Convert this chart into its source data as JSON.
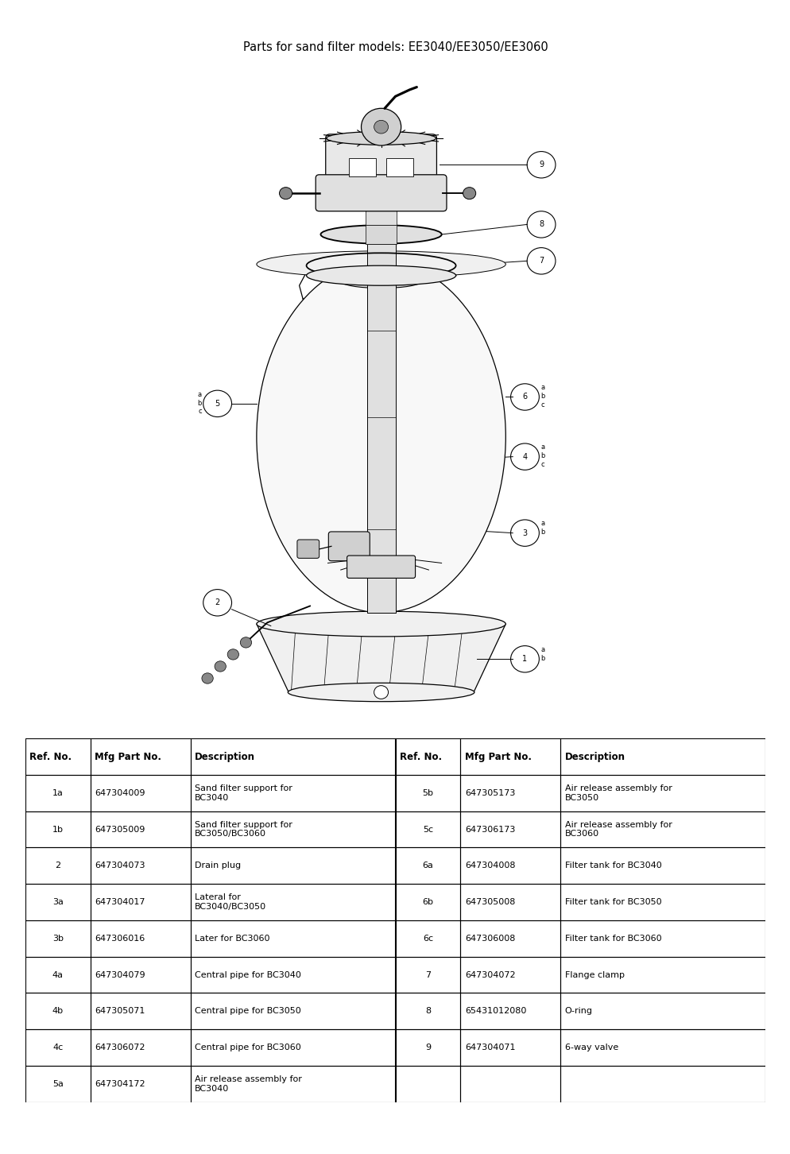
{
  "title": "Parts for sand filter models: EE3040/EE3050/EE3060",
  "title_fontsize": 10.5,
  "bg_color": "#ffffff",
  "table_headers_left": [
    "Ref. No.",
    "Mfg Part No.",
    "Description"
  ],
  "table_headers_right": [
    "Ref. No.",
    "Mfg Part No.",
    "Description"
  ],
  "table_rows_left": [
    [
      "1a",
      "647304009",
      "Sand filter support for\nBC3040"
    ],
    [
      "1b",
      "647305009",
      "Sand filter support for\nBC3050/BC3060"
    ],
    [
      "2",
      "647304073",
      "Drain plug"
    ],
    [
      "3a",
      "647304017",
      "Lateral for\nBC3040/BC3050"
    ],
    [
      "3b",
      "647306016",
      "Later for BC3060"
    ],
    [
      "4a",
      "647304079",
      "Central pipe for BC3040"
    ],
    [
      "4b",
      "647305071",
      "Central pipe for BC3050"
    ],
    [
      "4c",
      "647306072",
      "Central pipe for BC3060"
    ],
    [
      "5a",
      "647304172",
      "Air release assembly for\nBC3040"
    ]
  ],
  "table_rows_right": [
    [
      "5b",
      "647305173",
      "Air release assembly for\nBC3050"
    ],
    [
      "5c",
      "647306173",
      "Air release assembly for\nBC3060"
    ],
    [
      "6a",
      "647304008",
      "Filter tank for BC3040"
    ],
    [
      "6b",
      "647305008",
      "Filter tank for BC3050"
    ],
    [
      "6c",
      "647306008",
      "Filter tank for BC3060"
    ],
    [
      "7",
      "647304072",
      "Flange clamp"
    ],
    [
      "8",
      "65431012080",
      "O-ring"
    ],
    [
      "9",
      "647304071",
      "6-way valve"
    ],
    [
      "",
      "",
      ""
    ]
  ],
  "line_color": "#000000"
}
